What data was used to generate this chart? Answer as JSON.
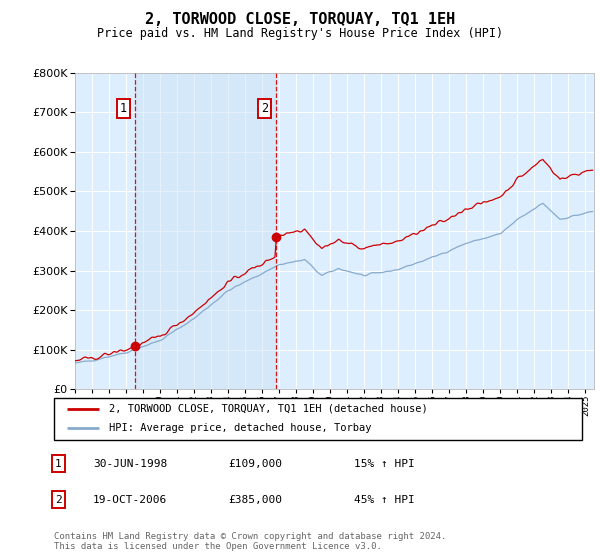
{
  "title": "2, TORWOOD CLOSE, TORQUAY, TQ1 1EH",
  "subtitle": "Price paid vs. HM Land Registry's House Price Index (HPI)",
  "legend_line1": "2, TORWOOD CLOSE, TORQUAY, TQ1 1EH (detached house)",
  "legend_line2": "HPI: Average price, detached house, Torbay",
  "sale1_label": "1",
  "sale1_date": "30-JUN-1998",
  "sale1_price": "£109,000",
  "sale1_hpi": "15% ↑ HPI",
  "sale1_year": 1998.5,
  "sale1_value": 109000,
  "sale2_label": "2",
  "sale2_date": "19-OCT-2006",
  "sale2_price": "£385,000",
  "sale2_hpi": "45% ↑ HPI",
  "sale2_year": 2006.8,
  "sale2_value": 385000,
  "footer": "Contains HM Land Registry data © Crown copyright and database right 2024.\nThis data is licensed under the Open Government Licence v3.0.",
  "red_color": "#cc0000",
  "blue_color": "#88aacc",
  "shade_color": "#ccddeeff",
  "background_plot": "#ddeeff",
  "ylim": [
    0,
    800000
  ],
  "xlim_start": 1995.0,
  "xlim_end": 2025.5
}
